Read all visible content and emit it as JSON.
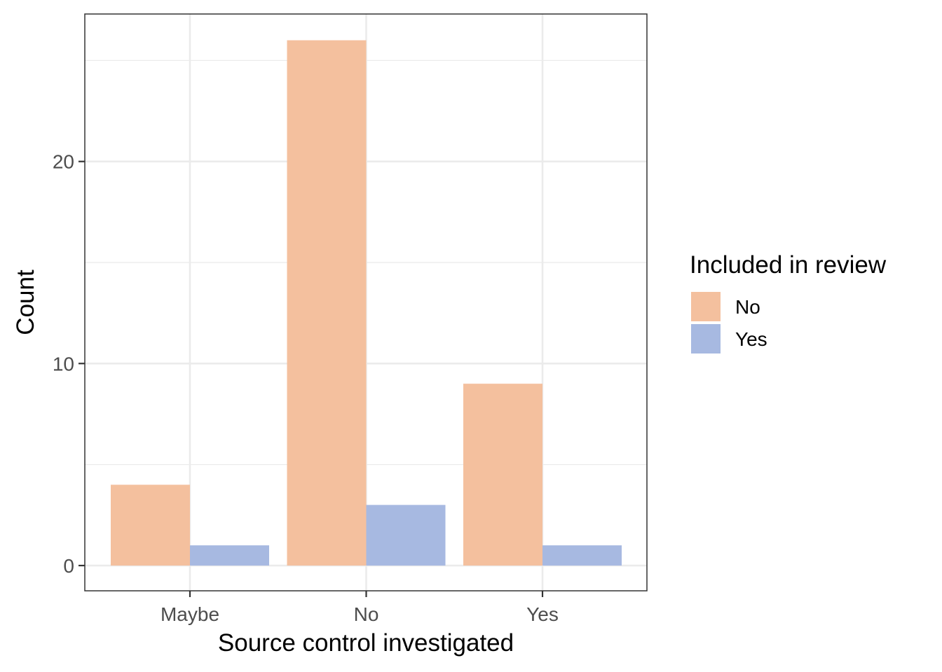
{
  "chart_data": {
    "type": "bar",
    "categories": [
      "Maybe",
      "No",
      "Yes"
    ],
    "series": [
      {
        "name": "No",
        "values": [
          4,
          26,
          9
        ],
        "color": "#F4C09E"
      },
      {
        "name": "Yes",
        "values": [
          1,
          3,
          1
        ],
        "color": "#A7B9E1"
      }
    ],
    "xlabel": "Source control investigated",
    "ylabel": "Count",
    "ylim": [
      -1.25,
      27.3
    ],
    "yticks": [
      0,
      10,
      20
    ],
    "yticks_minor": [
      5,
      15,
      25
    ],
    "grid": true,
    "legend": {
      "title": "Included in review",
      "position": "right"
    }
  }
}
